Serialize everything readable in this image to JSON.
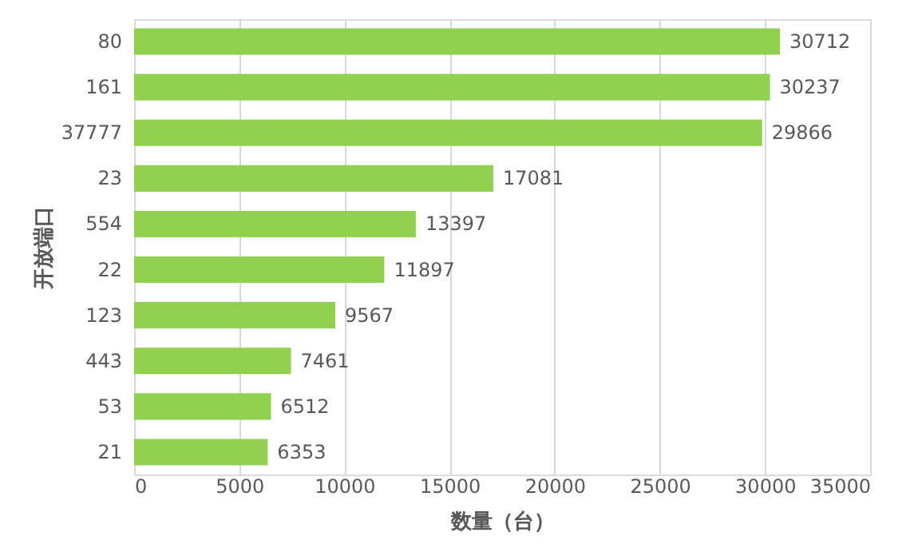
{
  "chart_data": {
    "type": "bar",
    "orientation": "horizontal",
    "xlabel": "数量（台）",
    "ylabel": "开放端口",
    "categories": [
      "80",
      "161",
      "37777",
      "23",
      "554",
      "22",
      "123",
      "443",
      "53",
      "21"
    ],
    "values": [
      30712,
      30237,
      29866,
      17081,
      13397,
      11897,
      9567,
      7461,
      6512,
      6353
    ],
    "color": "#92d050",
    "xlim": [
      0,
      35000
    ],
    "xticks": [
      0,
      5000,
      10000,
      15000,
      20000,
      25000,
      30000,
      35000
    ],
    "grid": "x",
    "data_labels": true
  }
}
